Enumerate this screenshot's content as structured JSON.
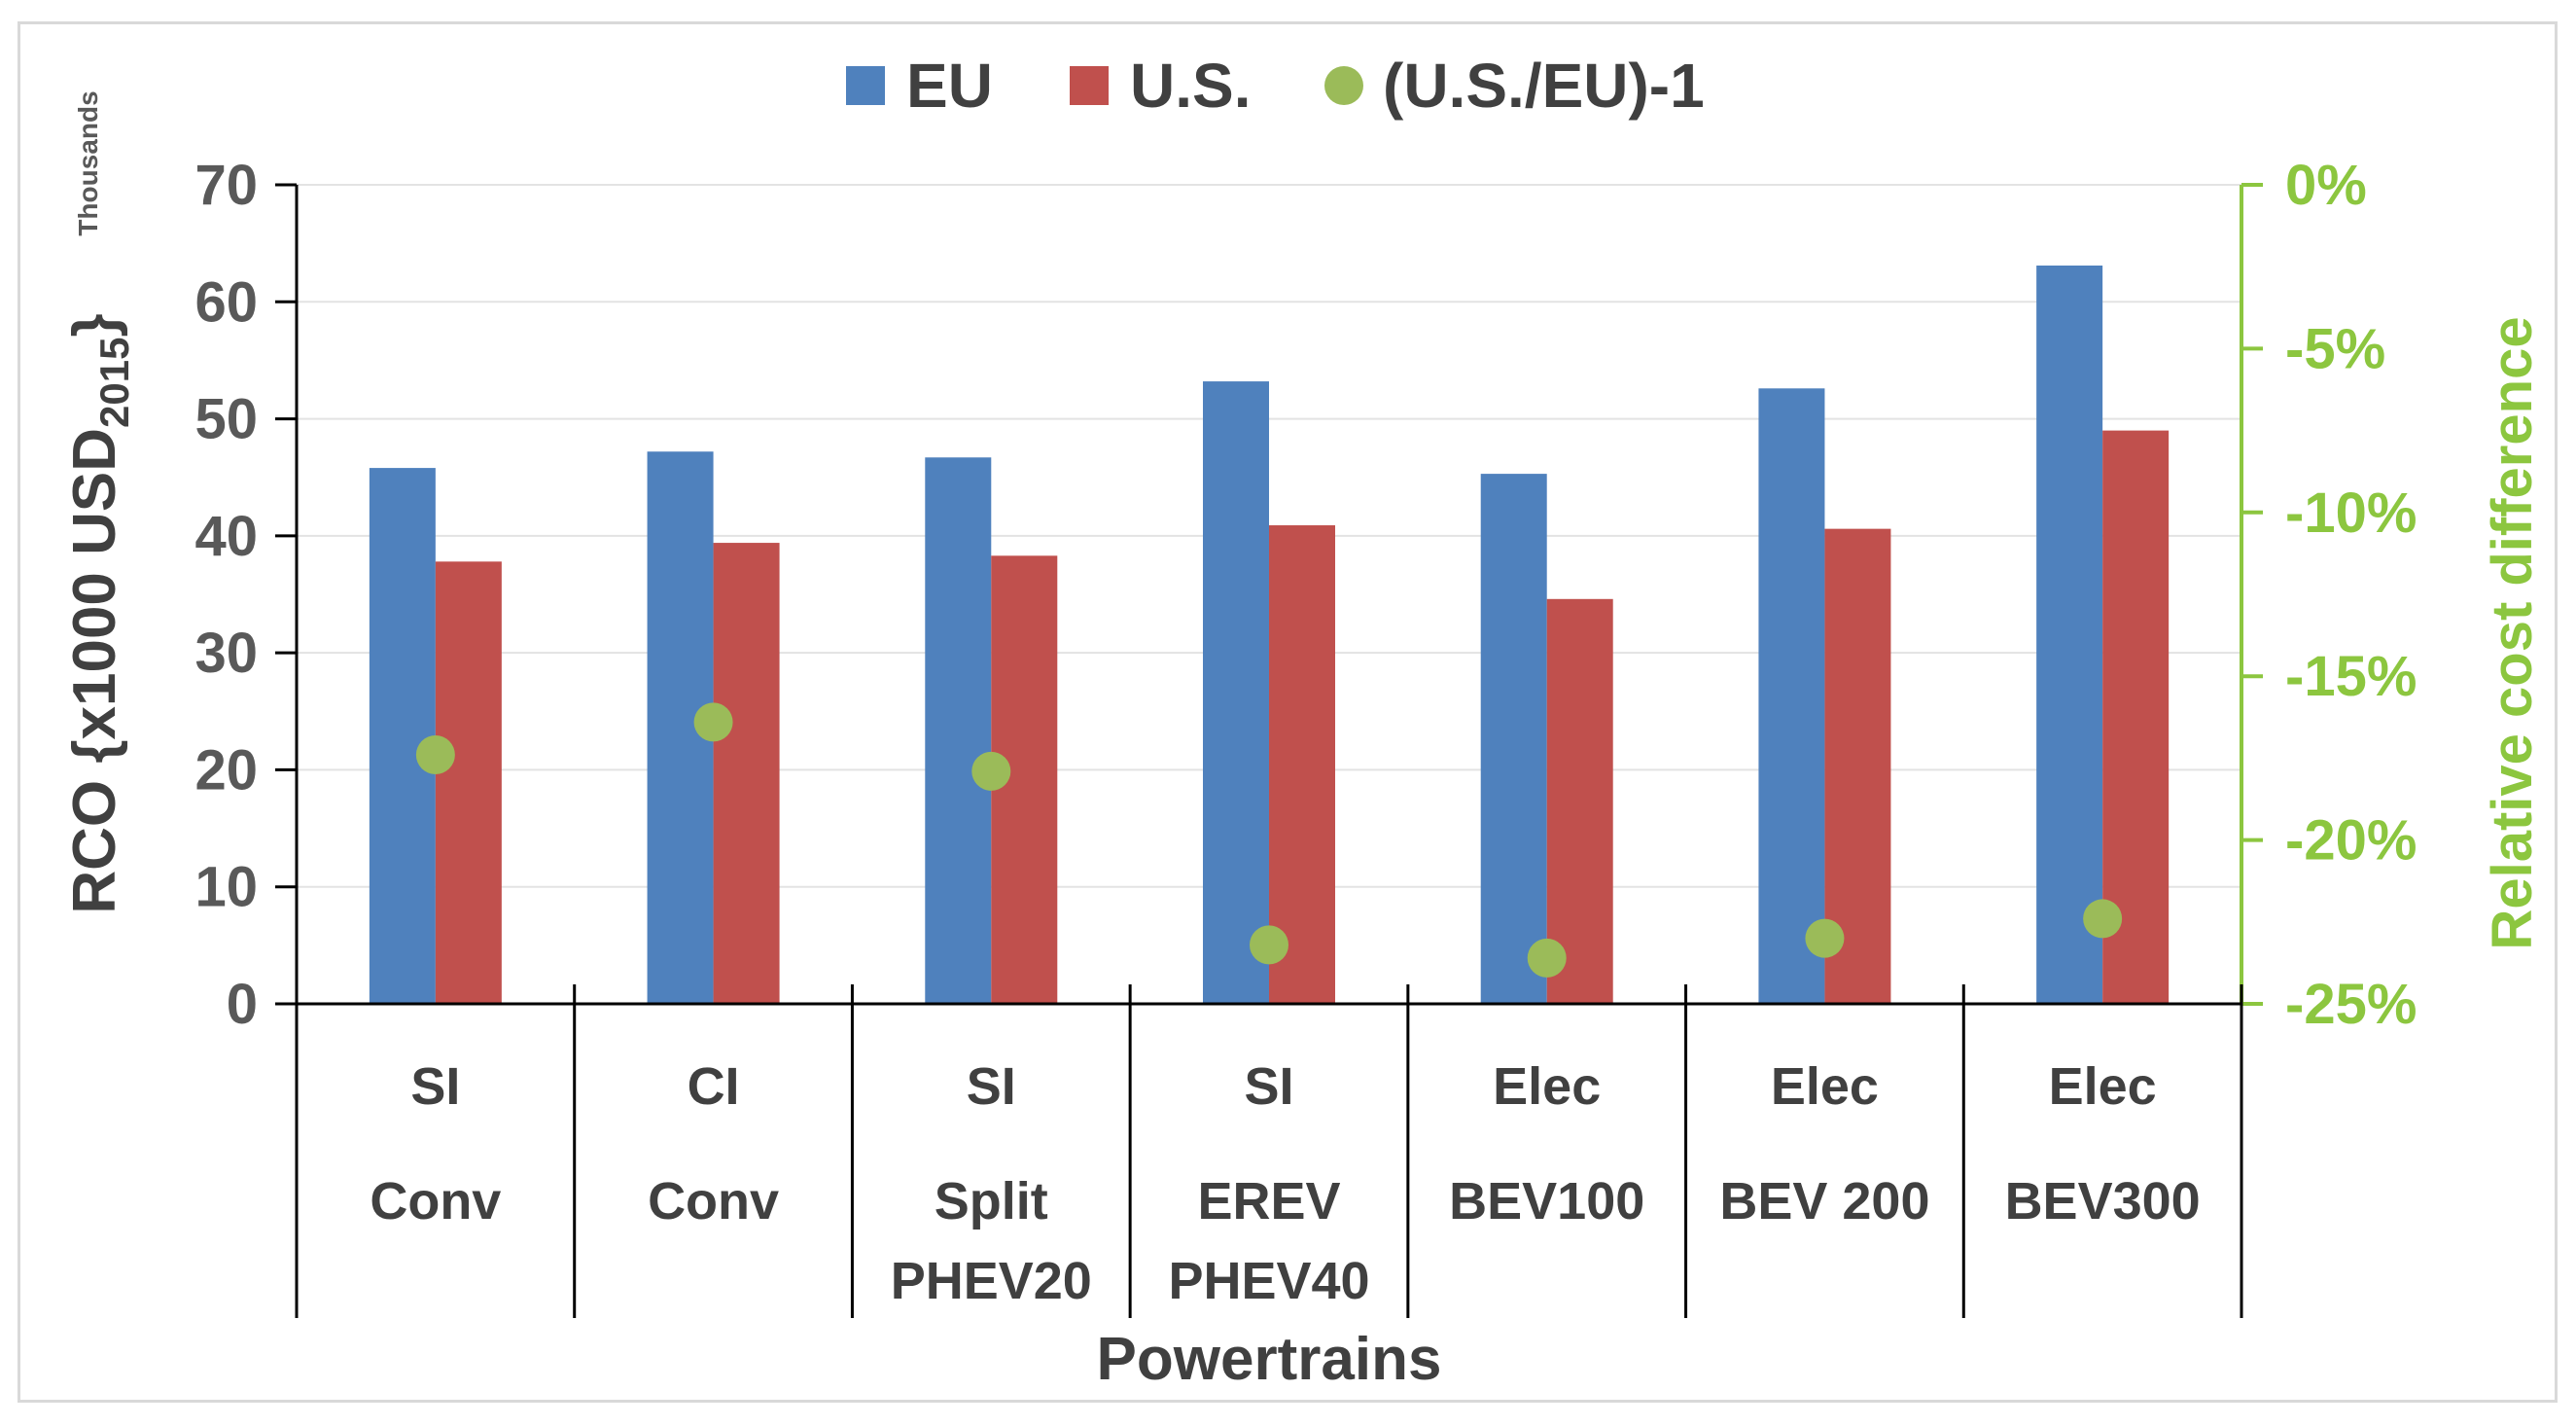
{
  "chart_data": {
    "type": "bar",
    "title": "",
    "categories": [
      {
        "line1": "SI",
        "line2": "Conv",
        "line3": ""
      },
      {
        "line1": "CI",
        "line2": "Conv",
        "line3": ""
      },
      {
        "line1": "SI",
        "line2": "Split",
        "line3": "PHEV20"
      },
      {
        "line1": "SI",
        "line2": "EREV",
        "line3": "PHEV40"
      },
      {
        "line1": "Elec",
        "line2": "BEV100",
        "line3": ""
      },
      {
        "line1": "Elec",
        "line2": "BEV 200",
        "line3": ""
      },
      {
        "line1": "Elec",
        "line2": "BEV300",
        "line3": ""
      }
    ],
    "series": [
      {
        "name": "EU",
        "color": "#4f81bd",
        "axis": "left",
        "values": [
          45.8,
          47.2,
          46.7,
          53.2,
          45.3,
          52.6,
          63.1
        ]
      },
      {
        "name": "U.S.",
        "color": "#c0504d",
        "axis": "left",
        "values": [
          37.8,
          39.4,
          38.3,
          40.9,
          34.6,
          40.6,
          49.0
        ]
      },
      {
        "name": "(U.S./EU)-1",
        "color": "#9bbb59",
        "axis": "right",
        "marker": "circle",
        "values": [
          -17.4,
          -16.4,
          -17.9,
          -23.2,
          -23.6,
          -23.0,
          -22.4
        ]
      }
    ],
    "xlabel": "Powertrains",
    "ylabel": "RCO {x1000 USD",
    "ylabel_sub": "2015",
    "ylabel_end": "}",
    "y_units_label": "Thousands",
    "ylim": [
      0,
      70
    ],
    "y_ticks": [
      0,
      10,
      20,
      30,
      40,
      50,
      60,
      70
    ],
    "y2label": "Relative cost difference",
    "y2lim": [
      -25,
      0
    ],
    "y2_ticks": [
      "0%",
      "-5%",
      "-10%",
      "-15%",
      "-20%",
      "-25%"
    ],
    "y2_tick_values": [
      0,
      -5,
      -10,
      -15,
      -20,
      -25
    ],
    "legend_position": "top",
    "grid": true
  }
}
